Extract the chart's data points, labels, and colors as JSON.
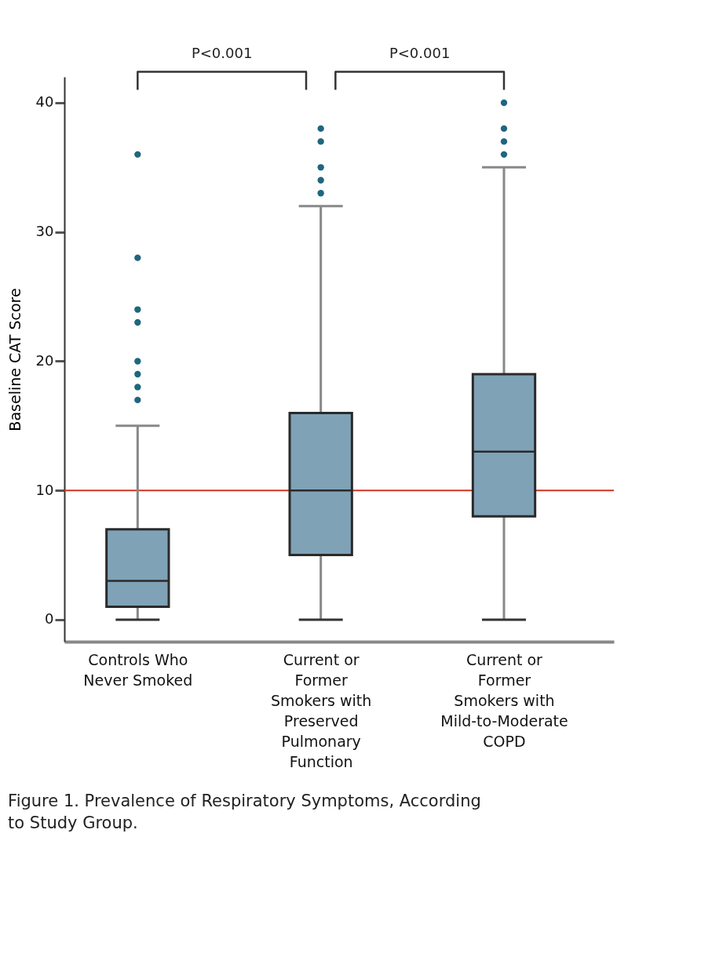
{
  "chart_data": {
    "type": "box",
    "title": "Figure 1. Prevalence of Respiratory Symptoms, According to Study Group.",
    "ylabel": "Baseline CAT Score",
    "categories": [
      "Controls Who Never Smoked",
      "Current or Former Smokers with Preserved Pulmonary Function",
      "Current or Former Smokers with Mild-to-Moderate COPD"
    ],
    "series": [
      {
        "color": "#7fa2b7",
        "boxes": [
          {
            "low": 0,
            "q1": 1,
            "median": 3,
            "q3": 7,
            "high": 15,
            "outliers": [
              17,
              18,
              19,
              20,
              23,
              24,
              28,
              36
            ]
          },
          {
            "low": 0,
            "q1": 5,
            "median": 10,
            "q3": 16,
            "high": 32,
            "outliers": [
              33,
              34,
              35,
              37,
              38
            ]
          },
          {
            "low": 0,
            "q1": 8,
            "median": 13,
            "q3": 19,
            "high": 35,
            "outliers": [
              36,
              37,
              38,
              40
            ]
          }
        ]
      }
    ],
    "ylim": [
      -1.7,
      42
    ],
    "yticks": [
      0,
      10,
      20,
      30,
      40
    ],
    "grid": false,
    "ref_lines": [
      {
        "axis": "y",
        "value": 10,
        "color": "#d0341f"
      }
    ],
    "annotations": [
      "P<0.001",
      "P<0.001"
    ]
  }
}
